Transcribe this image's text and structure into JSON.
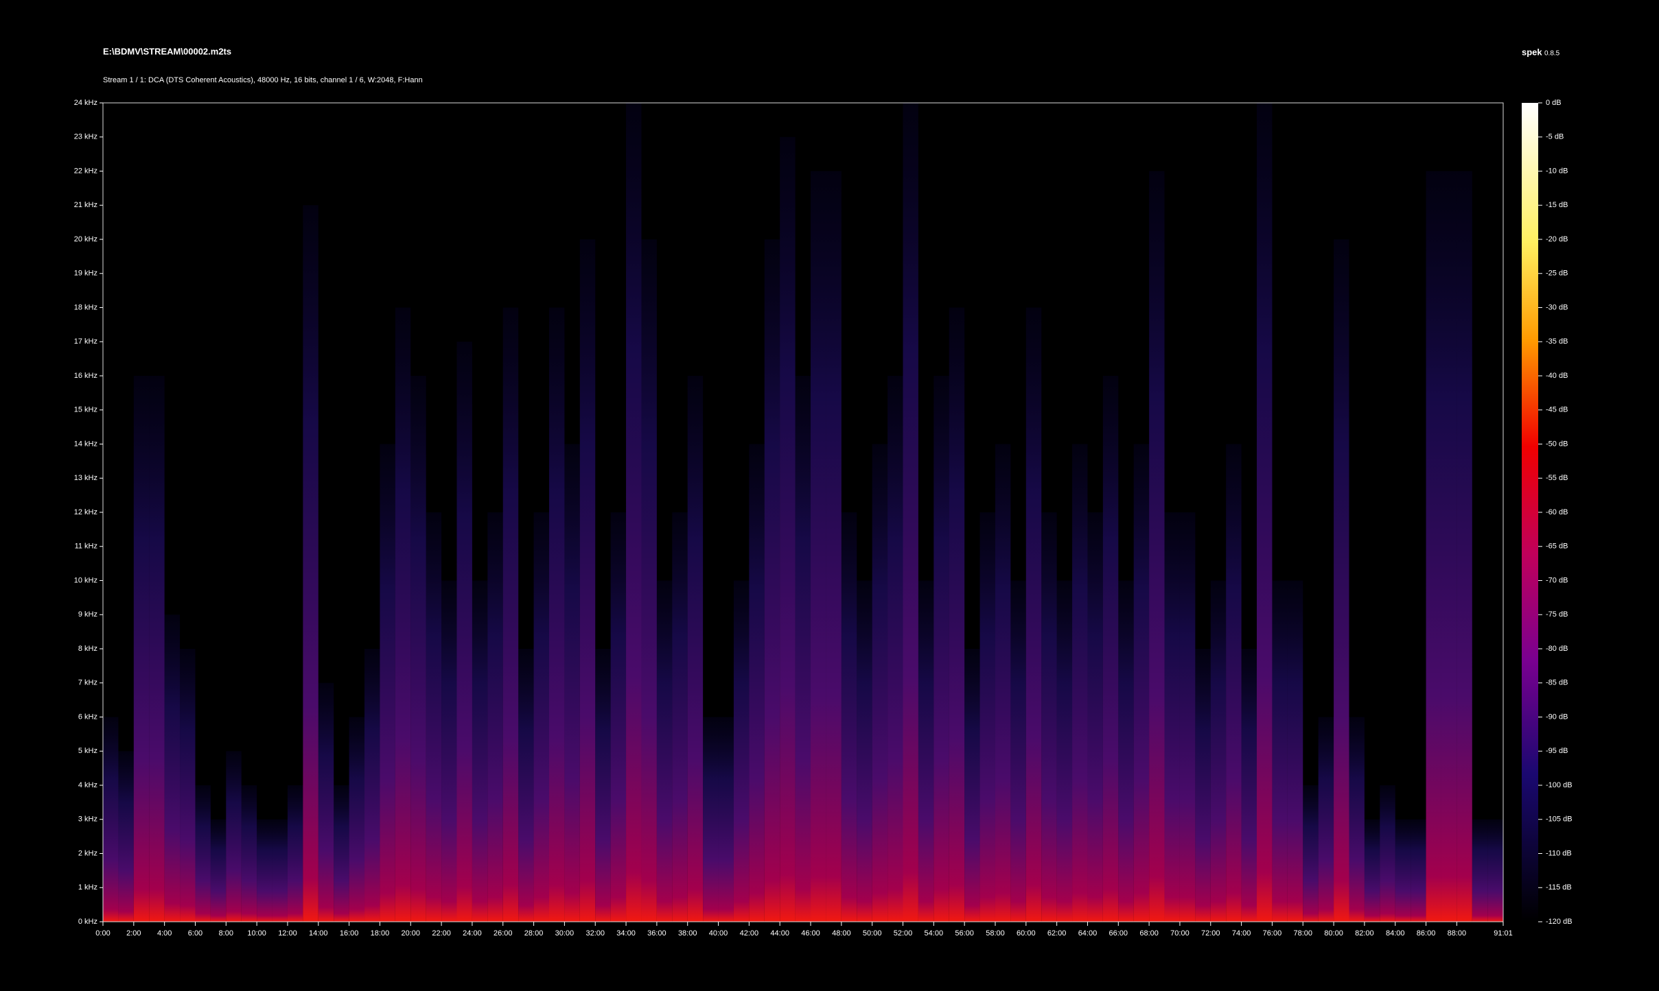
{
  "chart_data": {
    "type": "spectrogram",
    "title": "E:\\BDMV\\STREAM\\00002.m2ts",
    "subtitle": "Stream 1 / 1: DCA (DTS Coherent Acoustics), 48000 Hz, 16 bits, channel 1 / 6, W:2048, F:Hann",
    "app_name": "spek",
    "app_version": "0.8.5",
    "x": [
      0,
      1,
      2,
      3,
      4,
      5,
      6,
      7,
      8,
      9,
      10,
      11,
      12,
      13,
      14,
      15,
      16,
      17,
      18,
      19,
      20,
      21,
      22,
      23,
      24,
      25,
      26,
      27,
      28,
      29,
      30,
      31,
      32,
      33,
      34,
      35,
      36,
      37,
      38,
      39,
      40,
      41,
      42,
      43,
      44,
      45,
      46,
      47,
      48,
      49,
      50,
      51,
      52,
      53,
      54,
      55,
      56,
      57,
      58,
      59,
      60,
      61,
      62,
      63,
      64,
      65,
      66,
      67,
      68,
      69,
      70,
      71,
      72,
      73,
      74,
      75,
      76,
      77,
      78,
      79,
      80,
      81,
      82,
      83,
      84,
      85,
      86,
      87,
      88,
      89,
      90
    ],
    "values": [
      6,
      5,
      16,
      16,
      9,
      8,
      4,
      3,
      5,
      4,
      3,
      3,
      4,
      21,
      7,
      4,
      6,
      8,
      14,
      18,
      16,
      12,
      10,
      17,
      10,
      12,
      18,
      8,
      12,
      18,
      14,
      20,
      8,
      12,
      24,
      20,
      10,
      12,
      16,
      6,
      6,
      10,
      14,
      20,
      23,
      16,
      22,
      22,
      12,
      10,
      14,
      16,
      24,
      10,
      16,
      18,
      8,
      12,
      14,
      10,
      18,
      12,
      10,
      14,
      12,
      16,
      10,
      14,
      22,
      12,
      12,
      8,
      10,
      14,
      8,
      24,
      10,
      10,
      4,
      6,
      20,
      6,
      3,
      4,
      3,
      3,
      22,
      22,
      22,
      3,
      3
    ],
    "xlim": [
      0,
      91.0167
    ],
    "xticks": [
      {
        "value": 0,
        "label": "0:00"
      },
      {
        "value": 2,
        "label": "2:00"
      },
      {
        "value": 4,
        "label": "4:00"
      },
      {
        "value": 6,
        "label": "6:00"
      },
      {
        "value": 8,
        "label": "8:00"
      },
      {
        "value": 10,
        "label": "10:00"
      },
      {
        "value": 12,
        "label": "12:00"
      },
      {
        "value": 14,
        "label": "14:00"
      },
      {
        "value": 16,
        "label": "16:00"
      },
      {
        "value": 18,
        "label": "18:00"
      },
      {
        "value": 20,
        "label": "20:00"
      },
      {
        "value": 22,
        "label": "22:00"
      },
      {
        "value": 24,
        "label": "24:00"
      },
      {
        "value": 26,
        "label": "26:00"
      },
      {
        "value": 28,
        "label": "28:00"
      },
      {
        "value": 30,
        "label": "30:00"
      },
      {
        "value": 32,
        "label": "32:00"
      },
      {
        "value": 34,
        "label": "34:00"
      },
      {
        "value": 36,
        "label": "36:00"
      },
      {
        "value": 38,
        "label": "38:00"
      },
      {
        "value": 40,
        "label": "40:00"
      },
      {
        "value": 42,
        "label": "42:00"
      },
      {
        "value": 44,
        "label": "44:00"
      },
      {
        "value": 46,
        "label": "46:00"
      },
      {
        "value": 48,
        "label": "48:00"
      },
      {
        "value": 50,
        "label": "50:00"
      },
      {
        "value": 52,
        "label": "52:00"
      },
      {
        "value": 54,
        "label": "54:00"
      },
      {
        "value": 56,
        "label": "56:00"
      },
      {
        "value": 58,
        "label": "58:00"
      },
      {
        "value": 60,
        "label": "60:00"
      },
      {
        "value": 62,
        "label": "62:00"
      },
      {
        "value": 64,
        "label": "64:00"
      },
      {
        "value": 66,
        "label": "66:00"
      },
      {
        "value": 68,
        "label": "68:00"
      },
      {
        "value": 70,
        "label": "70:00"
      },
      {
        "value": 72,
        "label": "72:00"
      },
      {
        "value": 74,
        "label": "74:00"
      },
      {
        "value": 76,
        "label": "76:00"
      },
      {
        "value": 78,
        "label": "78:00"
      },
      {
        "value": 80,
        "label": "80:00"
      },
      {
        "value": 82,
        "label": "82:00"
      },
      {
        "value": 84,
        "label": "84:00"
      },
      {
        "value": 86,
        "label": "86:00"
      },
      {
        "value": 88,
        "label": "88:00"
      },
      {
        "value": 91.0167,
        "label": "91:01"
      }
    ],
    "ylim": [
      0,
      24
    ],
    "yticks": [
      {
        "value": 0,
        "label": "0 kHz"
      },
      {
        "value": 1,
        "label": "1 kHz"
      },
      {
        "value": 2,
        "label": "2 kHz"
      },
      {
        "value": 3,
        "label": "3 kHz"
      },
      {
        "value": 4,
        "label": "4 kHz"
      },
      {
        "value": 5,
        "label": "5 kHz"
      },
      {
        "value": 6,
        "label": "6 kHz"
      },
      {
        "value": 7,
        "label": "7 kHz"
      },
      {
        "value": 8,
        "label": "8 kHz"
      },
      {
        "value": 9,
        "label": "9 kHz"
      },
      {
        "value": 10,
        "label": "10 kHz"
      },
      {
        "value": 11,
        "label": "11 kHz"
      },
      {
        "value": 12,
        "label": "12 kHz"
      },
      {
        "value": 13,
        "label": "13 kHz"
      },
      {
        "value": 14,
        "label": "14 kHz"
      },
      {
        "value": 15,
        "label": "15 kHz"
      },
      {
        "value": 16,
        "label": "16 kHz"
      },
      {
        "value": 17,
        "label": "17 kHz"
      },
      {
        "value": 18,
        "label": "18 kHz"
      },
      {
        "value": 19,
        "label": "19 kHz"
      },
      {
        "value": 20,
        "label": "20 kHz"
      },
      {
        "value": 21,
        "label": "21 kHz"
      },
      {
        "value": 22,
        "label": "22 kHz"
      },
      {
        "value": 23,
        "label": "23 kHz"
      },
      {
        "value": 24,
        "label": "24 kHz"
      }
    ],
    "clim": [
      -120,
      0
    ],
    "cticks": [
      {
        "value": 0,
        "label": "0 dB"
      },
      {
        "value": -5,
        "label": "-5 dB"
      },
      {
        "value": -10,
        "label": "-10 dB"
      },
      {
        "value": -15,
        "label": "-15 dB"
      },
      {
        "value": -20,
        "label": "-20 dB"
      },
      {
        "value": -25,
        "label": "-25 dB"
      },
      {
        "value": -30,
        "label": "-30 dB"
      },
      {
        "value": -35,
        "label": "-35 dB"
      },
      {
        "value": -40,
        "label": "-40 dB"
      },
      {
        "value": -45,
        "label": "-45 dB"
      },
      {
        "value": -50,
        "label": "-50 dB"
      },
      {
        "value": -55,
        "label": "-55 dB"
      },
      {
        "value": -60,
        "label": "-60 dB"
      },
      {
        "value": -65,
        "label": "-65 dB"
      },
      {
        "value": -70,
        "label": "-70 dB"
      },
      {
        "value": -75,
        "label": "-75 dB"
      },
      {
        "value": -80,
        "label": "-80 dB"
      },
      {
        "value": -85,
        "label": "-85 dB"
      },
      {
        "value": -90,
        "label": "-90 dB"
      },
      {
        "value": -95,
        "label": "-95 dB"
      },
      {
        "value": -100,
        "label": "-100 dB"
      },
      {
        "value": -105,
        "label": "-105 dB"
      },
      {
        "value": -110,
        "label": "-110 dB"
      },
      {
        "value": -115,
        "label": "-115 dB"
      },
      {
        "value": -120,
        "label": "-120 dB"
      }
    ]
  }
}
